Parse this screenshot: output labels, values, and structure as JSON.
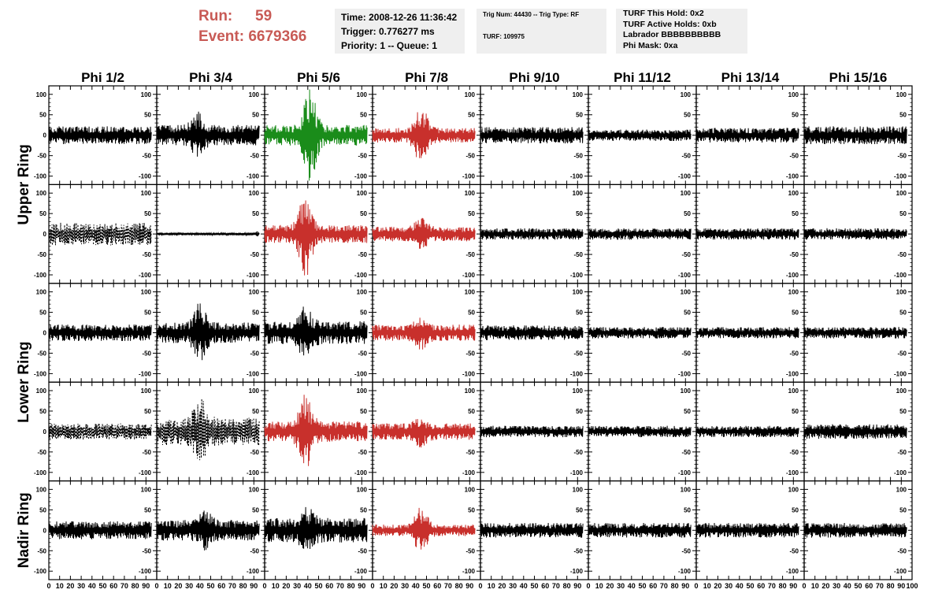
{
  "header": {
    "run_label": "Run:",
    "run_value": "59",
    "event_label": "Event:",
    "event_value": "6679366"
  },
  "info_time": {
    "time": "Time: 2008-12-26 11:36:42",
    "trigger": "Trigger: 0.776277 ms",
    "priority": "Priority: 1 -- Queue: 1"
  },
  "info_trig": {
    "trig": "Trig Num: 44430 -- Trig Type: RF",
    "turf": "TURF: 109975"
  },
  "info_turf": {
    "this_hold": "TURF This Hold: 0x2",
    "active_holds": "TURF Active Holds: 0xb",
    "labrador": "Labrador BBBBBBBBBB",
    "phi_mask": "Phi Mask: 0xa"
  },
  "colors": {
    "header_text": "#c85a55",
    "info_bg": "#efefef",
    "trace_default": "#000000",
    "trace_red": "#c8302c",
    "trace_green": "#1a8c1a"
  },
  "chart_data": {
    "type": "line",
    "description_of_grid": "5 rows x 8 columns of waveform panels",
    "columns": [
      "Phi 1/2",
      "Phi 3/4",
      "Phi 5/6",
      "Phi 7/8",
      "Phi 9/10",
      "Phi 11/12",
      "Phi 13/14",
      "Phi 15/16"
    ],
    "ring_labels": [
      {
        "label": "Upper Ring",
        "rows": [
          0,
          1
        ]
      },
      {
        "label": "Lower Ring",
        "rows": [
          2,
          3
        ]
      },
      {
        "label": "Nadir Ring",
        "rows": [
          4
        ]
      }
    ],
    "xlim": [
      0,
      100
    ],
    "ylim": [
      -115,
      115
    ],
    "x_ticks": [
      0,
      10,
      20,
      30,
      40,
      50,
      60,
      70,
      80,
      90,
      100
    ],
    "x_tick_labels": [
      "0",
      "10",
      "20",
      "30",
      "40",
      "50",
      "60",
      "70",
      "80",
      "90",
      "100"
    ],
    "y_ticks": [
      100,
      50,
      0,
      -50,
      -100
    ],
    "y_tick_labels": [
      "100",
      "50",
      "0",
      "-50",
      "-100"
    ],
    "trace_x_range": [
      0,
      95
    ],
    "panels": [
      [
        {
          "style": "solid",
          "color": "black",
          "amp": 22,
          "peak": 0,
          "peak_x": 45
        },
        {
          "style": "solid",
          "color": "black",
          "amp": 25,
          "peak": 35,
          "peak_x": 38
        },
        {
          "style": "solid",
          "color": "green",
          "amp": 25,
          "peak": 95,
          "peak_x": 42
        },
        {
          "style": "solid",
          "color": "red",
          "amp": 18,
          "peak": 55,
          "peak_x": 45
        },
        {
          "style": "solid",
          "color": "black",
          "amp": 20,
          "peak": 0,
          "peak_x": 45
        },
        {
          "style": "solid",
          "color": "black",
          "amp": 14,
          "peak": 0,
          "peak_x": 45
        },
        {
          "style": "solid",
          "color": "black",
          "amp": 18,
          "peak": 0,
          "peak_x": 45
        },
        {
          "style": "solid",
          "color": "black",
          "amp": 22,
          "peak": 0,
          "peak_x": 45
        }
      ],
      [
        {
          "style": "dashed",
          "color": "black",
          "amp": 28,
          "peak": 0,
          "peak_x": 45
        },
        {
          "style": "solid",
          "color": "black",
          "amp": 3,
          "peak": 0,
          "peak_x": 45
        },
        {
          "style": "solid",
          "color": "red",
          "amp": 22,
          "peak": 85,
          "peak_x": 38
        },
        {
          "style": "solid",
          "color": "red",
          "amp": 18,
          "peak": 25,
          "peak_x": 45
        },
        {
          "style": "solid",
          "color": "black",
          "amp": 14,
          "peak": 0,
          "peak_x": 45
        },
        {
          "style": "solid",
          "color": "black",
          "amp": 14,
          "peak": 0,
          "peak_x": 45
        },
        {
          "style": "solid",
          "color": "black",
          "amp": 14,
          "peak": 0,
          "peak_x": 45
        },
        {
          "style": "solid",
          "color": "black",
          "amp": 14,
          "peak": 0,
          "peak_x": 45
        }
      ],
      [
        {
          "style": "solid",
          "color": "black",
          "amp": 20,
          "peak": 0,
          "peak_x": 45
        },
        {
          "style": "solid",
          "color": "black",
          "amp": 25,
          "peak": 50,
          "peak_x": 40
        },
        {
          "style": "solid",
          "color": "black",
          "amp": 28,
          "peak": 40,
          "peak_x": 38
        },
        {
          "style": "solid",
          "color": "red",
          "amp": 20,
          "peak": 25,
          "peak_x": 45
        },
        {
          "style": "solid",
          "color": "black",
          "amp": 18,
          "peak": 0,
          "peak_x": 45
        },
        {
          "style": "solid",
          "color": "black",
          "amp": 14,
          "peak": 0,
          "peak_x": 45
        },
        {
          "style": "solid",
          "color": "black",
          "amp": 14,
          "peak": 0,
          "peak_x": 45
        },
        {
          "style": "solid",
          "color": "black",
          "amp": 14,
          "peak": 0,
          "peak_x": 45
        }
      ],
      [
        {
          "style": "dashed",
          "color": "black",
          "amp": 20,
          "peak": 0,
          "peak_x": 45
        },
        {
          "style": "dashed",
          "color": "black",
          "amp": 35,
          "peak": 50,
          "peak_x": 40
        },
        {
          "style": "solid",
          "color": "red",
          "amp": 25,
          "peak": 70,
          "peak_x": 38
        },
        {
          "style": "solid",
          "color": "red",
          "amp": 20,
          "peak": 20,
          "peak_x": 45
        },
        {
          "style": "solid",
          "color": "black",
          "amp": 14,
          "peak": 0,
          "peak_x": 45
        },
        {
          "style": "solid",
          "color": "black",
          "amp": 14,
          "peak": 0,
          "peak_x": 45
        },
        {
          "style": "solid",
          "color": "black",
          "amp": 14,
          "peak": 0,
          "peak_x": 45
        },
        {
          "style": "solid",
          "color": "black",
          "amp": 18,
          "peak": 0,
          "peak_x": 45
        }
      ],
      [
        {
          "style": "solid",
          "color": "black",
          "amp": 22,
          "peak": 0,
          "peak_x": 45
        },
        {
          "style": "solid",
          "color": "black",
          "amp": 25,
          "peak": 25,
          "peak_x": 45
        },
        {
          "style": "solid",
          "color": "black",
          "amp": 30,
          "peak": 30,
          "peak_x": 40
        },
        {
          "style": "solid",
          "color": "red",
          "amp": 14,
          "peak": 45,
          "peak_x": 45
        },
        {
          "style": "solid",
          "color": "black",
          "amp": 18,
          "peak": 0,
          "peak_x": 45
        },
        {
          "style": "solid",
          "color": "black",
          "amp": 18,
          "peak": 0,
          "peak_x": 45
        },
        {
          "style": "solid",
          "color": "black",
          "amp": 18,
          "peak": 0,
          "peak_x": 45
        },
        {
          "style": "solid",
          "color": "black",
          "amp": 18,
          "peak": 0,
          "peak_x": 45
        }
      ]
    ]
  }
}
